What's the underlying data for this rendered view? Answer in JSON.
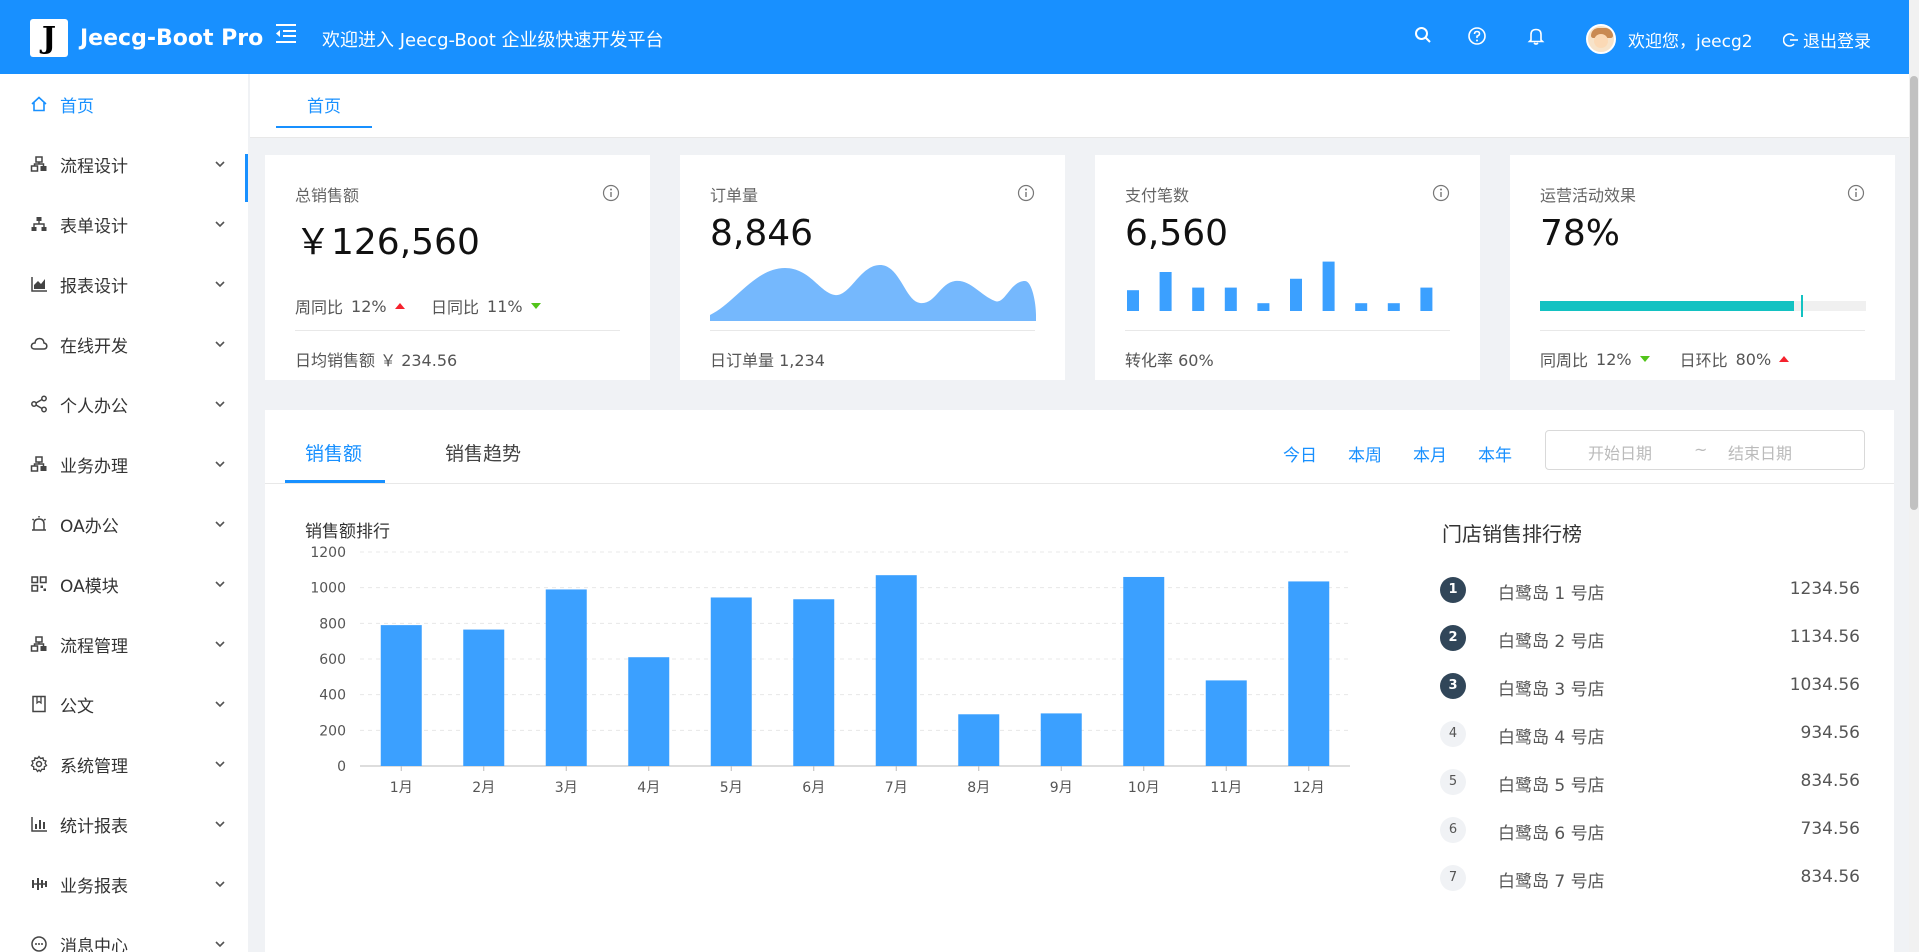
{
  "header": {
    "logo_letter": "J",
    "app_name": "Jeecg-Boot Pro",
    "welcome": "欢迎进入 Jeecg-Boot 企业级快速开发平台",
    "user_greeting": "欢迎您，jeecg2",
    "logout": "退出登录",
    "icons": [
      "search-icon",
      "help-icon",
      "bell-icon"
    ]
  },
  "sidebar": {
    "items": [
      {
        "label": "首页",
        "icon": "home-icon",
        "active": true
      },
      {
        "label": "流程设计",
        "icon": "flow-icon"
      },
      {
        "label": "表单设计",
        "icon": "form-icon"
      },
      {
        "label": "报表设计",
        "icon": "area-chart-icon"
      },
      {
        "label": "在线开发",
        "icon": "cloud-icon"
      },
      {
        "label": "个人办公",
        "icon": "share-icon"
      },
      {
        "label": "业务办理",
        "icon": "flow-icon"
      },
      {
        "label": "OA办公",
        "icon": "alarm-icon"
      },
      {
        "label": "OA模块",
        "icon": "qrcode-icon"
      },
      {
        "label": "流程管理",
        "icon": "flow-icon"
      },
      {
        "label": "公文",
        "icon": "book-icon"
      },
      {
        "label": "系统管理",
        "icon": "gear-icon"
      },
      {
        "label": "统计报表",
        "icon": "bar-chart-icon"
      },
      {
        "label": "业务报表",
        "icon": "sliders-icon"
      },
      {
        "label": "消息中心",
        "icon": "message-icon"
      }
    ]
  },
  "tabs": {
    "home": "首页"
  },
  "cards": {
    "sales": {
      "title": "总销售额",
      "value": "￥126,560",
      "week_label": "周同比",
      "week_value": "12%",
      "day_label": "日同比",
      "day_value": "11%",
      "footer_label": "日均销售额",
      "footer_value": "￥ 234.56"
    },
    "orders": {
      "title": "订单量",
      "value": "8,846",
      "footer_label": "日订单量",
      "footer_value": "1,234",
      "area_color": "#75b8fd"
    },
    "payments": {
      "title": "支付笔数",
      "value": "6,560",
      "footer_label": "转化率",
      "footer_value": "60%",
      "bars": [
        0.4,
        0.75,
        0.45,
        0.45,
        0.15,
        0.62,
        0.95,
        0.15,
        0.15,
        0.45
      ],
      "bar_color": "#3ba0ff"
    },
    "campaign": {
      "title": "运营活动效果",
      "value": "78%",
      "progress": 0.8,
      "progress_color": "#13c2c2",
      "yoy_label": "同周比",
      "yoy_value": "12%",
      "mom_label": "日环比",
      "mom_value": "80%"
    }
  },
  "panel": {
    "tab_sales": "销售额",
    "tab_trend": "销售趋势",
    "periods": [
      "今日",
      "本周",
      "本月",
      "本年"
    ],
    "range_start": "开始日期",
    "range_sep": "~",
    "range_end": "结束日期",
    "chart_title": "销售额排行",
    "rank_title": "门店销售排行榜",
    "ranking": [
      {
        "rank": "1",
        "name": "白鹭岛 1 号店",
        "value": "1234.56"
      },
      {
        "rank": "2",
        "name": "白鹭岛 2 号店",
        "value": "1134.56"
      },
      {
        "rank": "3",
        "name": "白鹭岛 3 号店",
        "value": "1034.56"
      },
      {
        "rank": "4",
        "name": "白鹭岛 4 号店",
        "value": "934.56"
      },
      {
        "rank": "5",
        "name": "白鹭岛 5 号店",
        "value": "834.56"
      },
      {
        "rank": "6",
        "name": "白鹭岛 6 号店",
        "value": "734.56"
      },
      {
        "rank": "7",
        "name": "白鹭岛 7 号店",
        "value": "834.56"
      }
    ]
  },
  "colors": {
    "primary": "#1890ff",
    "bar": "#3ba0ff",
    "teal": "#13c2c2",
    "up": "#f5222d",
    "down": "#52c41a"
  },
  "chart_data": {
    "type": "bar",
    "title": "销售额排行",
    "categories": [
      "1月",
      "2月",
      "3月",
      "4月",
      "5月",
      "6月",
      "7月",
      "8月",
      "9月",
      "10月",
      "11月",
      "12月"
    ],
    "values": [
      790,
      765,
      990,
      610,
      945,
      935,
      1070,
      290,
      295,
      1060,
      480,
      1035
    ],
    "yticks": [
      0,
      200,
      400,
      600,
      800,
      1000,
      1200
    ],
    "ylim": [
      0,
      1200
    ],
    "grid": true,
    "color": "#3ba0ff"
  }
}
